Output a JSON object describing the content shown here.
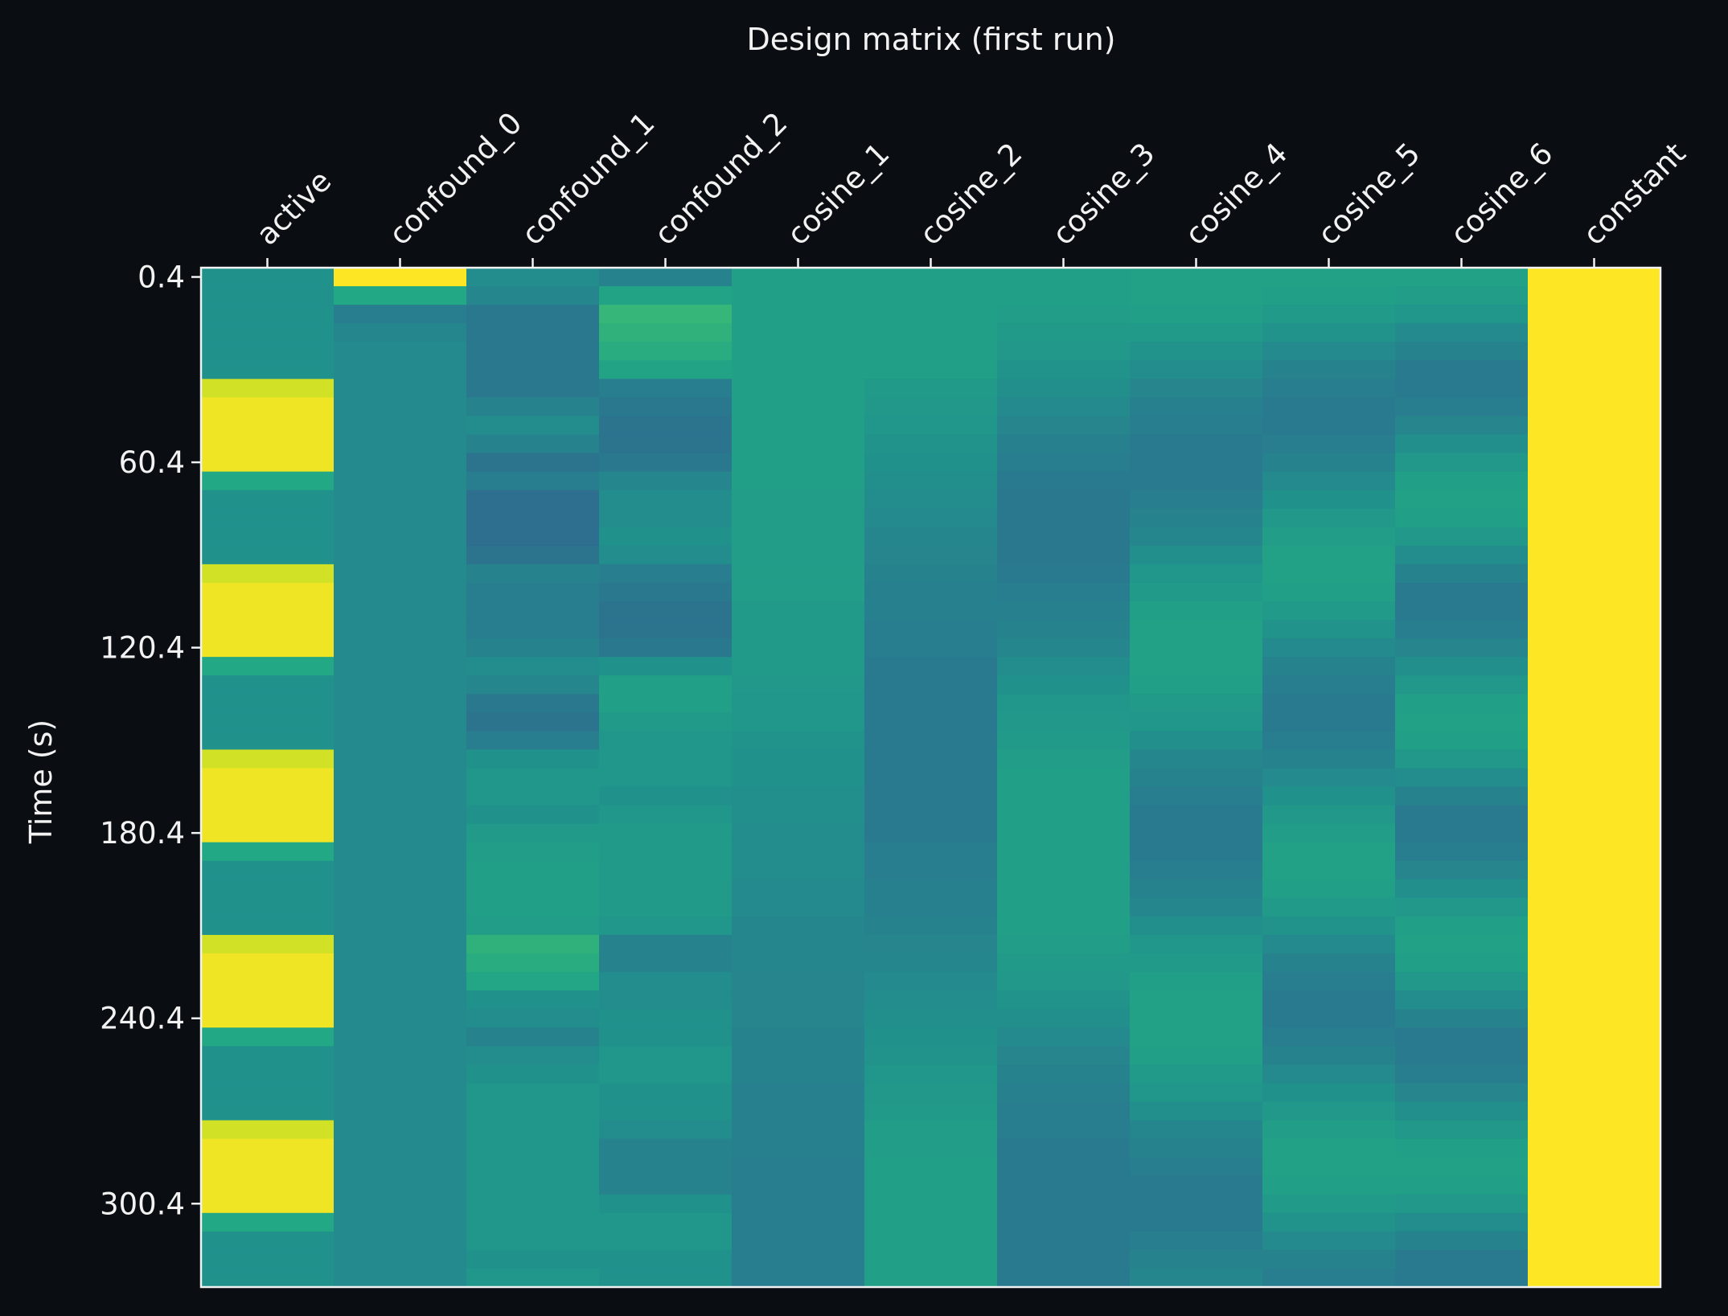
{
  "chart_data": {
    "type": "heatmap",
    "title": "Design matrix (first run)",
    "ylabel": "Time (s)",
    "xlabel": "",
    "x_tick_position": "top",
    "columns": [
      "active",
      "confound_0",
      "confound_1",
      "confound_2",
      "cosine_1",
      "cosine_2",
      "cosine_3",
      "cosine_4",
      "cosine_5",
      "cosine_6",
      "constant"
    ],
    "y_tick_labels": [
      "0.4",
      "60.4",
      "120.4",
      "180.4",
      "240.4",
      "300.4"
    ],
    "y_ticks": [
      0.4,
      60.4,
      120.4,
      180.4,
      240.4,
      300.4
    ],
    "frame_times_start": 0.4,
    "frame_time_step": 6.0,
    "n_scans": 55,
    "colormap": "viridis",
    "value_range": [
      0.0,
      1.0
    ],
    "grid": false,
    "values": {
      "active": [
        0.5,
        0.5,
        0.5,
        0.5,
        0.5,
        0.5,
        0.93,
        0.98,
        0.98,
        0.98,
        0.98,
        0.6,
        0.5,
        0.5,
        0.5,
        0.5,
        0.93,
        0.98,
        0.98,
        0.98,
        0.98,
        0.6,
        0.5,
        0.5,
        0.5,
        0.5,
        0.93,
        0.98,
        0.98,
        0.98,
        0.98,
        0.6,
        0.5,
        0.5,
        0.5,
        0.5,
        0.93,
        0.98,
        0.98,
        0.98,
        0.98,
        0.6,
        0.5,
        0.5,
        0.5,
        0.5,
        0.93,
        0.98,
        0.98,
        0.98,
        0.98,
        0.6,
        0.5,
        0.5,
        0.5
      ],
      "confound_0": [
        1.0,
        0.6,
        0.42,
        0.46,
        0.47,
        0.47,
        0.47,
        0.47,
        0.47,
        0.47,
        0.47,
        0.47,
        0.47,
        0.47,
        0.47,
        0.47,
        0.47,
        0.47,
        0.47,
        0.47,
        0.47,
        0.47,
        0.47,
        0.47,
        0.47,
        0.47,
        0.47,
        0.47,
        0.47,
        0.47,
        0.47,
        0.47,
        0.47,
        0.47,
        0.47,
        0.47,
        0.47,
        0.47,
        0.47,
        0.47,
        0.47,
        0.47,
        0.47,
        0.47,
        0.47,
        0.47,
        0.47,
        0.47,
        0.47,
        0.47,
        0.47,
        0.47,
        0.47,
        0.47,
        0.47
      ],
      "confound_1": [
        0.48,
        0.46,
        0.4,
        0.4,
        0.4,
        0.4,
        0.4,
        0.44,
        0.48,
        0.44,
        0.38,
        0.42,
        0.36,
        0.36,
        0.36,
        0.38,
        0.44,
        0.42,
        0.42,
        0.42,
        0.44,
        0.48,
        0.46,
        0.4,
        0.38,
        0.42,
        0.5,
        0.52,
        0.52,
        0.5,
        0.54,
        0.55,
        0.56,
        0.56,
        0.56,
        0.55,
        0.64,
        0.62,
        0.59,
        0.5,
        0.48,
        0.44,
        0.48,
        0.5,
        0.52,
        0.52,
        0.52,
        0.52,
        0.52,
        0.52,
        0.52,
        0.52,
        0.52,
        0.5,
        0.52
      ],
      "confound_2": [
        0.44,
        0.58,
        0.66,
        0.64,
        0.62,
        0.58,
        0.42,
        0.4,
        0.38,
        0.38,
        0.4,
        0.46,
        0.48,
        0.48,
        0.5,
        0.48,
        0.42,
        0.4,
        0.38,
        0.38,
        0.4,
        0.5,
        0.56,
        0.56,
        0.54,
        0.52,
        0.52,
        0.52,
        0.5,
        0.52,
        0.54,
        0.54,
        0.54,
        0.54,
        0.54,
        0.52,
        0.44,
        0.44,
        0.48,
        0.48,
        0.5,
        0.5,
        0.52,
        0.52,
        0.5,
        0.5,
        0.48,
        0.44,
        0.44,
        0.44,
        0.5,
        0.52,
        0.52,
        0.5,
        0.5
      ],
      "cosine_1": [
        0.56,
        0.56,
        0.56,
        0.56,
        0.56,
        0.56,
        0.56,
        0.56,
        0.56,
        0.56,
        0.56,
        0.56,
        0.55,
        0.55,
        0.55,
        0.55,
        0.55,
        0.55,
        0.54,
        0.54,
        0.54,
        0.54,
        0.53,
        0.52,
        0.52,
        0.51,
        0.5,
        0.5,
        0.49,
        0.49,
        0.48,
        0.48,
        0.48,
        0.47,
        0.47,
        0.46,
        0.46,
        0.46,
        0.45,
        0.45,
        0.45,
        0.44,
        0.44,
        0.44,
        0.43,
        0.43,
        0.43,
        0.43,
        0.42,
        0.42,
        0.42,
        0.42,
        0.42,
        0.42,
        0.42
      ],
      "cosine_2": [
        0.56,
        0.56,
        0.56,
        0.56,
        0.56,
        0.56,
        0.54,
        0.53,
        0.52,
        0.51,
        0.5,
        0.49,
        0.48,
        0.47,
        0.46,
        0.45,
        0.44,
        0.43,
        0.43,
        0.42,
        0.42,
        0.41,
        0.41,
        0.41,
        0.41,
        0.41,
        0.41,
        0.41,
        0.41,
        0.41,
        0.41,
        0.42,
        0.42,
        0.43,
        0.43,
        0.44,
        0.45,
        0.46,
        0.47,
        0.48,
        0.49,
        0.5,
        0.51,
        0.52,
        0.53,
        0.54,
        0.55,
        0.55,
        0.56,
        0.56,
        0.56,
        0.56,
        0.56,
        0.56,
        0.56
      ],
      "cosine_3": [
        0.56,
        0.56,
        0.55,
        0.54,
        0.53,
        0.51,
        0.49,
        0.47,
        0.45,
        0.43,
        0.42,
        0.41,
        0.4,
        0.4,
        0.4,
        0.4,
        0.41,
        0.42,
        0.43,
        0.44,
        0.46,
        0.48,
        0.5,
        0.52,
        0.53,
        0.54,
        0.55,
        0.56,
        0.56,
        0.56,
        0.56,
        0.56,
        0.56,
        0.56,
        0.56,
        0.56,
        0.55,
        0.54,
        0.53,
        0.51,
        0.49,
        0.47,
        0.45,
        0.44,
        0.43,
        0.42,
        0.42,
        0.41,
        0.41,
        0.41,
        0.41,
        0.41,
        0.41,
        0.41,
        0.41
      ],
      "cosine_4": [
        0.57,
        0.57,
        0.56,
        0.54,
        0.51,
        0.48,
        0.45,
        0.43,
        0.42,
        0.41,
        0.41,
        0.41,
        0.42,
        0.44,
        0.46,
        0.49,
        0.52,
        0.54,
        0.56,
        0.57,
        0.57,
        0.57,
        0.56,
        0.54,
        0.52,
        0.49,
        0.46,
        0.44,
        0.42,
        0.41,
        0.41,
        0.41,
        0.42,
        0.44,
        0.46,
        0.49,
        0.52,
        0.54,
        0.56,
        0.57,
        0.57,
        0.57,
        0.56,
        0.54,
        0.52,
        0.49,
        0.46,
        0.44,
        0.42,
        0.41,
        0.41,
        0.41,
        0.42,
        0.44,
        0.46
      ],
      "cosine_5": [
        0.57,
        0.56,
        0.54,
        0.51,
        0.47,
        0.44,
        0.42,
        0.41,
        0.41,
        0.42,
        0.44,
        0.47,
        0.5,
        0.53,
        0.55,
        0.57,
        0.57,
        0.56,
        0.54,
        0.51,
        0.47,
        0.44,
        0.42,
        0.41,
        0.41,
        0.42,
        0.44,
        0.47,
        0.5,
        0.53,
        0.55,
        0.57,
        0.57,
        0.56,
        0.54,
        0.51,
        0.47,
        0.44,
        0.42,
        0.41,
        0.41,
        0.42,
        0.44,
        0.47,
        0.5,
        0.53,
        0.55,
        0.57,
        0.57,
        0.56,
        0.54,
        0.51,
        0.47,
        0.44,
        0.42
      ],
      "cosine_6": [
        0.57,
        0.55,
        0.52,
        0.47,
        0.44,
        0.41,
        0.41,
        0.42,
        0.45,
        0.49,
        0.53,
        0.56,
        0.57,
        0.56,
        0.53,
        0.48,
        0.44,
        0.41,
        0.41,
        0.42,
        0.45,
        0.49,
        0.53,
        0.56,
        0.57,
        0.56,
        0.53,
        0.48,
        0.44,
        0.41,
        0.41,
        0.42,
        0.45,
        0.49,
        0.53,
        0.56,
        0.57,
        0.56,
        0.53,
        0.48,
        0.44,
        0.41,
        0.41,
        0.42,
        0.45,
        0.49,
        0.53,
        0.56,
        0.57,
        0.56,
        0.53,
        0.48,
        0.44,
        0.41,
        0.41
      ],
      "constant": [
        1.0,
        1.0,
        1.0,
        1.0,
        1.0,
        1.0,
        1.0,
        1.0,
        1.0,
        1.0,
        1.0,
        1.0,
        1.0,
        1.0,
        1.0,
        1.0,
        1.0,
        1.0,
        1.0,
        1.0,
        1.0,
        1.0,
        1.0,
        1.0,
        1.0,
        1.0,
        1.0,
        1.0,
        1.0,
        1.0,
        1.0,
        1.0,
        1.0,
        1.0,
        1.0,
        1.0,
        1.0,
        1.0,
        1.0,
        1.0,
        1.0,
        1.0,
        1.0,
        1.0,
        1.0,
        1.0,
        1.0,
        1.0,
        1.0,
        1.0,
        1.0,
        1.0,
        1.0,
        1.0,
        1.0
      ]
    }
  },
  "colors": {
    "background": "#0a0d12",
    "text": "#f2f2f2",
    "axis": "#f2f2f2"
  }
}
